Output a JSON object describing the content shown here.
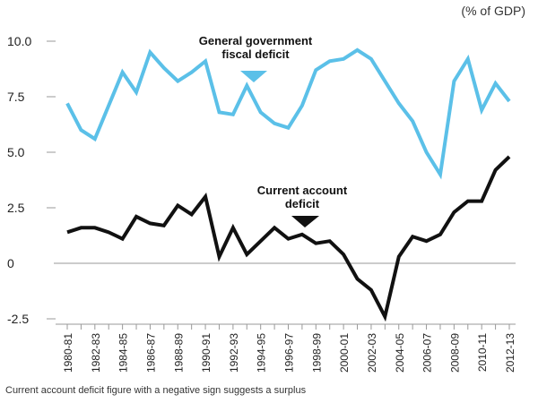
{
  "chart_data": {
    "type": "line",
    "unit_label": "(% of GDP)",
    "categories": [
      "1980-81",
      "1981-82",
      "1982-83",
      "1983-84",
      "1984-85",
      "1985-86",
      "1986-87",
      "1987-88",
      "1988-89",
      "1989-90",
      "1990-91",
      "1991-92",
      "1992-93",
      "1993-94",
      "1994-95",
      "1995-96",
      "1996-97",
      "1997-98",
      "1998-99",
      "1999-00",
      "2000-01",
      "2001-02",
      "2002-03",
      "2003-04",
      "2004-05",
      "2005-06",
      "2006-07",
      "2007-08",
      "2008-09",
      "2009-10",
      "2010-11",
      "2011-12",
      "2012-13"
    ],
    "tick_labels": [
      "1980-81",
      "1982-83",
      "1984-85",
      "1986-87",
      "1988-89",
      "1990-91",
      "1992-93",
      "1994-95",
      "1996-97",
      "1998-99",
      "2000-01",
      "2002-03",
      "2004-05",
      "2006-07",
      "2008-09",
      "2010-11",
      "2012-13"
    ],
    "ytick_labels": [
      "-2.5",
      "0",
      "2.5",
      "5.0",
      "7.5",
      "10.0"
    ],
    "yticks": [
      -2.5,
      0,
      2.5,
      5.0,
      7.5,
      10.0
    ],
    "ylim": [
      -2.5,
      10.5
    ],
    "series": [
      {
        "name": "General government fiscal deficit",
        "label_lines": [
          "General government",
          "fiscal deficit"
        ],
        "color": "#5bc0e8",
        "values": [
          7.2,
          6.0,
          5.6,
          7.1,
          8.6,
          7.7,
          9.5,
          8.8,
          8.2,
          8.6,
          9.1,
          6.8,
          6.7,
          8.0,
          6.8,
          6.3,
          6.1,
          7.1,
          8.7,
          9.1,
          9.2,
          9.6,
          9.2,
          8.2,
          7.2,
          6.4,
          5.0,
          4.0,
          8.2,
          9.2,
          6.9,
          8.1,
          7.3
        ]
      },
      {
        "name": "Current account deficit",
        "label_lines": [
          "Current account",
          "deficit"
        ],
        "color": "#111111",
        "values": [
          1.4,
          1.6,
          1.6,
          1.4,
          1.1,
          2.1,
          1.8,
          1.7,
          2.6,
          2.2,
          3.0,
          0.3,
          1.6,
          0.4,
          1.0,
          1.6,
          1.1,
          1.3,
          0.9,
          1.0,
          0.4,
          -0.7,
          -1.2,
          -2.4,
          0.3,
          1.2,
          1.0,
          1.3,
          2.3,
          2.8,
          2.8,
          4.2,
          4.8
        ]
      }
    ],
    "footnote": "Current account deficit figure with a negative sign suggests a surplus"
  }
}
